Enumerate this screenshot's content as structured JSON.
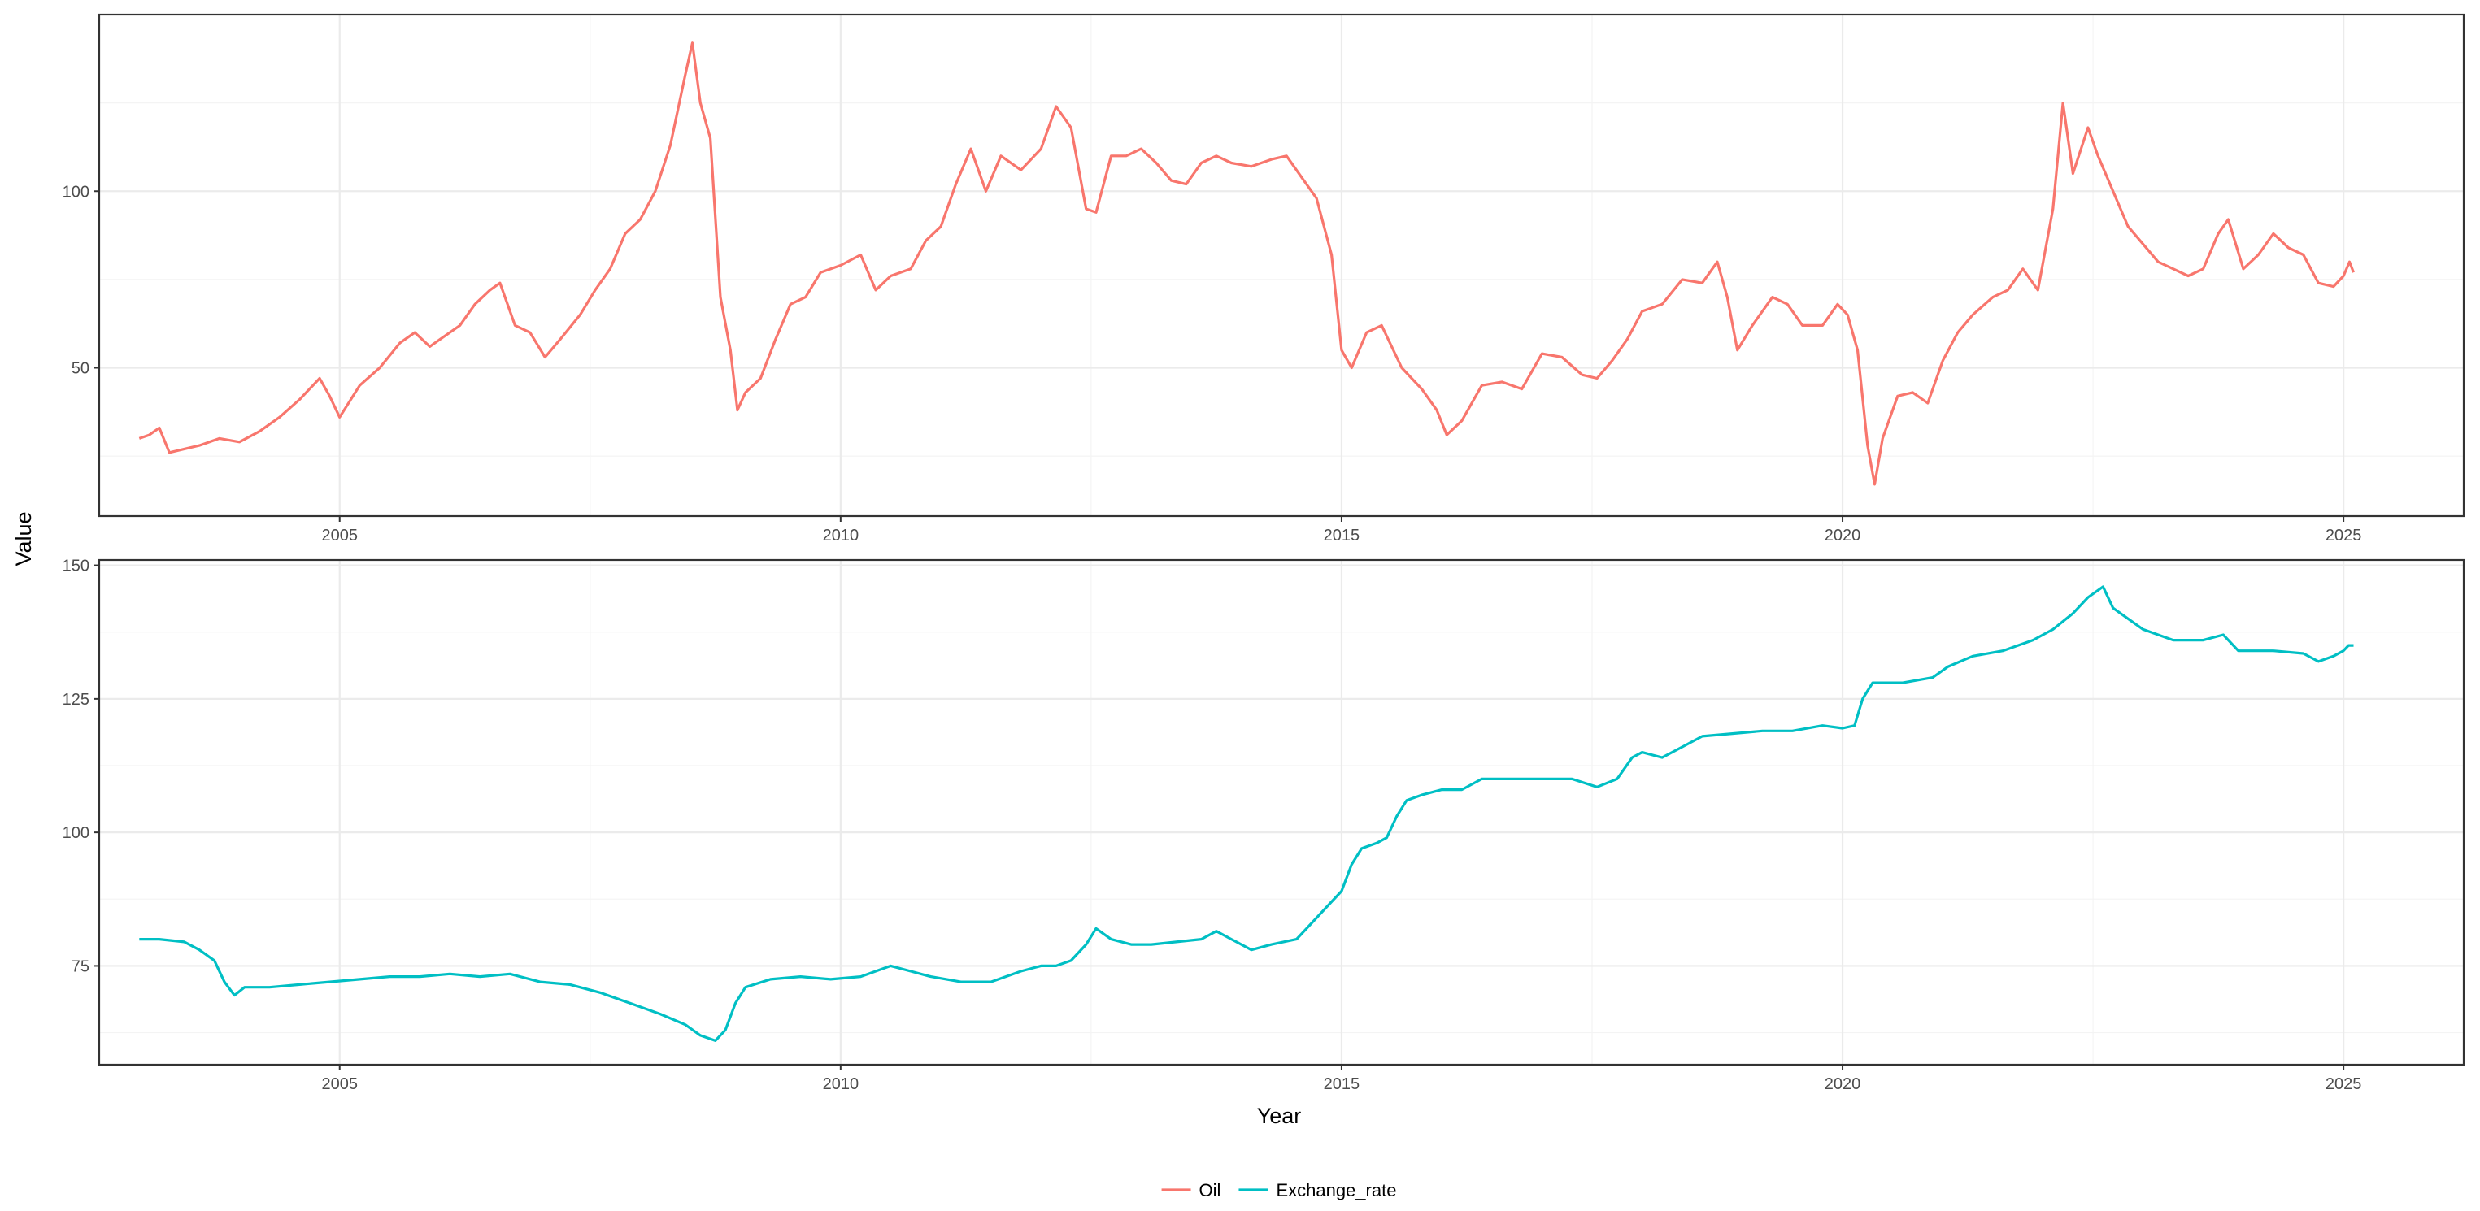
{
  "chart_data": {
    "type": "line",
    "layout": "two stacked panels with free y scales, shared x axis",
    "xlabel": "Year",
    "ylabel": "Value",
    "x_ticks": [
      "2005",
      "2010",
      "2015",
      "2020",
      "2025"
    ],
    "xlim": [
      2002.6,
      2026.2
    ],
    "grid": true,
    "legend": {
      "position": "bottom",
      "entries": [
        "Oil",
        "Exchange_rate"
      ]
    },
    "panels": [
      {
        "series": "Oil",
        "color": "#F8766D",
        "y_ticks": [
          50,
          100
        ],
        "ylim": [
          8,
          150
        ],
        "points": [
          [
            2003.0,
            30
          ],
          [
            2003.1,
            31
          ],
          [
            2003.2,
            33
          ],
          [
            2003.3,
            26
          ],
          [
            2003.45,
            27
          ],
          [
            2003.6,
            28
          ],
          [
            2003.8,
            30
          ],
          [
            2004.0,
            29
          ],
          [
            2004.2,
            32
          ],
          [
            2004.4,
            36
          ],
          [
            2004.6,
            41
          ],
          [
            2004.8,
            47
          ],
          [
            2004.9,
            42
          ],
          [
            2005.0,
            36
          ],
          [
            2005.2,
            45
          ],
          [
            2005.4,
            50
          ],
          [
            2005.6,
            57
          ],
          [
            2005.75,
            60
          ],
          [
            2005.9,
            56
          ],
          [
            2006.0,
            58
          ],
          [
            2006.2,
            62
          ],
          [
            2006.35,
            68
          ],
          [
            2006.5,
            72
          ],
          [
            2006.6,
            74
          ],
          [
            2006.75,
            62
          ],
          [
            2006.9,
            60
          ],
          [
            2007.05,
            53
          ],
          [
            2007.2,
            58
          ],
          [
            2007.4,
            65
          ],
          [
            2007.55,
            72
          ],
          [
            2007.7,
            78
          ],
          [
            2007.85,
            88
          ],
          [
            2008.0,
            92
          ],
          [
            2008.15,
            100
          ],
          [
            2008.3,
            113
          ],
          [
            2008.45,
            133
          ],
          [
            2008.52,
            142
          ],
          [
            2008.6,
            125
          ],
          [
            2008.7,
            115
          ],
          [
            2008.8,
            70
          ],
          [
            2008.9,
            55
          ],
          [
            2008.97,
            38
          ],
          [
            2009.05,
            43
          ],
          [
            2009.2,
            47
          ],
          [
            2009.35,
            58
          ],
          [
            2009.5,
            68
          ],
          [
            2009.65,
            70
          ],
          [
            2009.8,
            77
          ],
          [
            2010.0,
            79
          ],
          [
            2010.2,
            82
          ],
          [
            2010.35,
            72
          ],
          [
            2010.5,
            76
          ],
          [
            2010.7,
            78
          ],
          [
            2010.85,
            86
          ],
          [
            2011.0,
            90
          ],
          [
            2011.15,
            102
          ],
          [
            2011.3,
            112
          ],
          [
            2011.45,
            100
          ],
          [
            2011.6,
            110
          ],
          [
            2011.8,
            106
          ],
          [
            2012.0,
            112
          ],
          [
            2012.15,
            124
          ],
          [
            2012.3,
            118
          ],
          [
            2012.45,
            95
          ],
          [
            2012.55,
            94
          ],
          [
            2012.7,
            110
          ],
          [
            2012.85,
            110
          ],
          [
            2013.0,
            112
          ],
          [
            2013.15,
            108
          ],
          [
            2013.3,
            103
          ],
          [
            2013.45,
            102
          ],
          [
            2013.6,
            108
          ],
          [
            2013.75,
            110
          ],
          [
            2013.9,
            108
          ],
          [
            2014.1,
            107
          ],
          [
            2014.3,
            109
          ],
          [
            2014.45,
            110
          ],
          [
            2014.6,
            104
          ],
          [
            2014.75,
            98
          ],
          [
            2014.9,
            82
          ],
          [
            2015.0,
            55
          ],
          [
            2015.1,
            50
          ],
          [
            2015.25,
            60
          ],
          [
            2015.4,
            62
          ],
          [
            2015.6,
            50
          ],
          [
            2015.8,
            44
          ],
          [
            2015.95,
            38
          ],
          [
            2016.05,
            31
          ],
          [
            2016.2,
            35
          ],
          [
            2016.4,
            45
          ],
          [
            2016.6,
            46
          ],
          [
            2016.8,
            44
          ],
          [
            2017.0,
            54
          ],
          [
            2017.2,
            53
          ],
          [
            2017.4,
            48
          ],
          [
            2017.55,
            47
          ],
          [
            2017.7,
            52
          ],
          [
            2017.85,
            58
          ],
          [
            2018.0,
            66
          ],
          [
            2018.2,
            68
          ],
          [
            2018.4,
            75
          ],
          [
            2018.6,
            74
          ],
          [
            2018.75,
            80
          ],
          [
            2018.85,
            70
          ],
          [
            2018.95,
            55
          ],
          [
            2019.1,
            62
          ],
          [
            2019.3,
            70
          ],
          [
            2019.45,
            68
          ],
          [
            2019.6,
            62
          ],
          [
            2019.8,
            62
          ],
          [
            2019.95,
            68
          ],
          [
            2020.05,
            65
          ],
          [
            2020.15,
            55
          ],
          [
            2020.25,
            28
          ],
          [
            2020.32,
            17
          ],
          [
            2020.4,
            30
          ],
          [
            2020.55,
            42
          ],
          [
            2020.7,
            43
          ],
          [
            2020.85,
            40
          ],
          [
            2021.0,
            52
          ],
          [
            2021.15,
            60
          ],
          [
            2021.3,
            65
          ],
          [
            2021.5,
            70
          ],
          [
            2021.65,
            72
          ],
          [
            2021.8,
            78
          ],
          [
            2021.95,
            72
          ],
          [
            2022.1,
            95
          ],
          [
            2022.2,
            125
          ],
          [
            2022.3,
            105
          ],
          [
            2022.45,
            118
          ],
          [
            2022.55,
            110
          ],
          [
            2022.7,
            100
          ],
          [
            2022.85,
            90
          ],
          [
            2023.0,
            85
          ],
          [
            2023.15,
            80
          ],
          [
            2023.3,
            78
          ],
          [
            2023.45,
            76
          ],
          [
            2023.6,
            78
          ],
          [
            2023.75,
            88
          ],
          [
            2023.85,
            92
          ],
          [
            2024.0,
            78
          ],
          [
            2024.15,
            82
          ],
          [
            2024.3,
            88
          ],
          [
            2024.45,
            84
          ],
          [
            2024.6,
            82
          ],
          [
            2024.75,
            74
          ],
          [
            2024.9,
            73
          ],
          [
            2025.0,
            76
          ],
          [
            2025.06,
            80
          ],
          [
            2025.1,
            77
          ]
        ]
      },
      {
        "series": "Exchange_rate",
        "color": "#00BFC4",
        "y_ticks": [
          75,
          100,
          125,
          150
        ],
        "ylim": [
          56.5,
          151
        ],
        "points": [
          [
            2003.0,
            80
          ],
          [
            2003.2,
            80
          ],
          [
            2003.45,
            79.5
          ],
          [
            2003.6,
            78
          ],
          [
            2003.75,
            76
          ],
          [
            2003.85,
            72
          ],
          [
            2003.95,
            69.5
          ],
          [
            2004.05,
            71
          ],
          [
            2004.3,
            71
          ],
          [
            2004.6,
            71.5
          ],
          [
            2004.9,
            72
          ],
          [
            2005.2,
            72.5
          ],
          [
            2005.5,
            73
          ],
          [
            2005.8,
            73
          ],
          [
            2006.1,
            73.5
          ],
          [
            2006.4,
            73
          ],
          [
            2006.7,
            73.5
          ],
          [
            2007.0,
            72
          ],
          [
            2007.3,
            71.5
          ],
          [
            2007.6,
            70
          ],
          [
            2007.9,
            68
          ],
          [
            2008.2,
            66
          ],
          [
            2008.45,
            64
          ],
          [
            2008.6,
            62
          ],
          [
            2008.75,
            61
          ],
          [
            2008.85,
            63
          ],
          [
            2008.95,
            68
          ],
          [
            2009.05,
            71
          ],
          [
            2009.3,
            72.5
          ],
          [
            2009.6,
            73
          ],
          [
            2009.9,
            72.5
          ],
          [
            2010.2,
            73
          ],
          [
            2010.5,
            75
          ],
          [
            2010.7,
            74
          ],
          [
            2010.9,
            73
          ],
          [
            2011.2,
            72
          ],
          [
            2011.5,
            72
          ],
          [
            2011.8,
            74
          ],
          [
            2012.0,
            75
          ],
          [
            2012.15,
            75
          ],
          [
            2012.3,
            76
          ],
          [
            2012.45,
            79
          ],
          [
            2012.55,
            82
          ],
          [
            2012.7,
            80
          ],
          [
            2012.9,
            79
          ],
          [
            2013.1,
            79
          ],
          [
            2013.35,
            79.5
          ],
          [
            2013.6,
            80
          ],
          [
            2013.75,
            81.5
          ],
          [
            2013.9,
            80
          ],
          [
            2014.1,
            78
          ],
          [
            2014.3,
            79
          ],
          [
            2014.55,
            80
          ],
          [
            2014.7,
            83
          ],
          [
            2014.85,
            86
          ],
          [
            2015.0,
            89
          ],
          [
            2015.1,
            94
          ],
          [
            2015.2,
            97
          ],
          [
            2015.35,
            98
          ],
          [
            2015.45,
            99
          ],
          [
            2015.55,
            103
          ],
          [
            2015.65,
            106
          ],
          [
            2015.8,
            107
          ],
          [
            2016.0,
            108
          ],
          [
            2016.2,
            108
          ],
          [
            2016.4,
            110
          ],
          [
            2016.7,
            110
          ],
          [
            2017.0,
            110
          ],
          [
            2017.3,
            110
          ],
          [
            2017.55,
            108.5
          ],
          [
            2017.75,
            110
          ],
          [
            2017.9,
            114
          ],
          [
            2018.0,
            115
          ],
          [
            2018.2,
            114
          ],
          [
            2018.4,
            116
          ],
          [
            2018.6,
            118
          ],
          [
            2018.9,
            118.5
          ],
          [
            2019.2,
            119
          ],
          [
            2019.5,
            119
          ],
          [
            2019.8,
            120
          ],
          [
            2020.0,
            119.5
          ],
          [
            2020.12,
            120
          ],
          [
            2020.2,
            125
          ],
          [
            2020.3,
            128
          ],
          [
            2020.6,
            128
          ],
          [
            2020.9,
            129
          ],
          [
            2021.05,
            131
          ],
          [
            2021.3,
            133
          ],
          [
            2021.6,
            134
          ],
          [
            2021.9,
            136
          ],
          [
            2022.1,
            138
          ],
          [
            2022.3,
            141
          ],
          [
            2022.45,
            144
          ],
          [
            2022.6,
            146
          ],
          [
            2022.7,
            142
          ],
          [
            2022.85,
            140
          ],
          [
            2023.0,
            138
          ],
          [
            2023.3,
            136
          ],
          [
            2023.6,
            136
          ],
          [
            2023.8,
            137
          ],
          [
            2023.95,
            134
          ],
          [
            2024.3,
            134
          ],
          [
            2024.6,
            133.5
          ],
          [
            2024.75,
            132
          ],
          [
            2024.9,
            133
          ],
          [
            2025.0,
            134
          ],
          [
            2025.05,
            135
          ],
          [
            2025.1,
            135
          ]
        ]
      }
    ]
  }
}
